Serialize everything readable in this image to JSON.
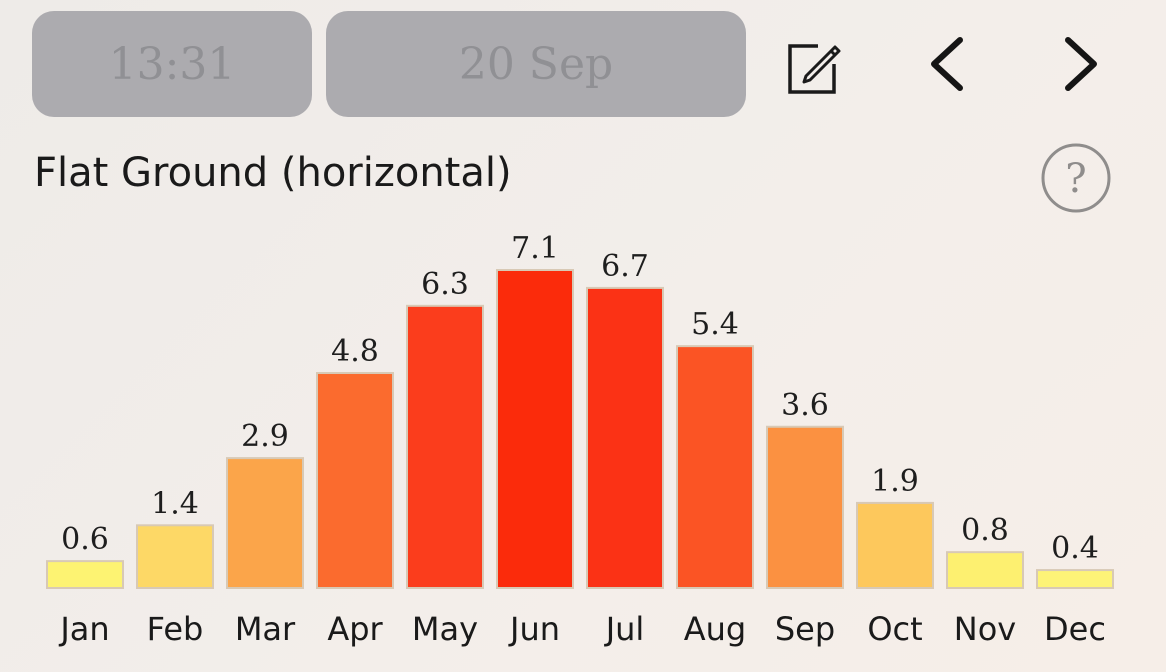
{
  "header": {
    "time": "13:31",
    "date": "20 Sep",
    "edit_icon": "edit-icon",
    "prev_icon": "chevron-left-icon",
    "next_icon": "chevron-right-icon",
    "help_icon": "help-icon",
    "help_symbol": "?"
  },
  "chart_data": {
    "type": "bar",
    "title": "Flat Ground (horizontal)",
    "categories": [
      "Jan",
      "Feb",
      "Mar",
      "Apr",
      "May",
      "Jun",
      "Jul",
      "Aug",
      "Sep",
      "Oct",
      "Nov",
      "Dec"
    ],
    "values": [
      0.6,
      1.4,
      2.9,
      4.8,
      6.3,
      7.1,
      6.7,
      5.4,
      3.6,
      1.9,
      0.8,
      0.4
    ],
    "value_labels": [
      "0.6",
      "1.4",
      "2.9",
      "4.8",
      "6.3",
      "7.1",
      "6.7",
      "5.4",
      "3.6",
      "1.9",
      "0.8",
      "0.4"
    ],
    "colors": [
      "#fdf372",
      "#fdd866",
      "#fba54a",
      "#fb6b2e",
      "#fb3d1c",
      "#fb2b0b",
      "#fb3215",
      "#fb5424",
      "#fb9141",
      "#fdc85c",
      "#fdf070",
      "#fdf377"
    ],
    "bar_border_color": "#d8c9b5",
    "ylim": [
      0,
      7.1
    ],
    "grid": false,
    "legend": "none"
  }
}
